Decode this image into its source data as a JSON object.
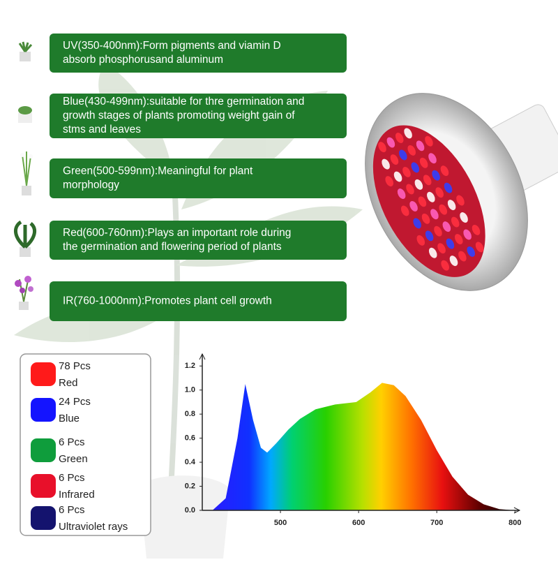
{
  "features": [
    {
      "lines": [
        "UV(350-400nm):Form pigments and viamin D",
        "absorb phosphorusand aluminum"
      ]
    },
    {
      "lines": [
        "Blue(430-499nm):suitable for thre germination and",
        "growth stages of plants promoting weight gain of",
        "stms and leaves"
      ]
    },
    {
      "lines": [
        "Green(500-599nm):Meaningful for plant",
        "morphology"
      ]
    },
    {
      "lines": [
        "Red(600-760nm):Plays an important role during",
        "the germination and flowering period of plants"
      ]
    },
    {
      "lines": [
        "IR(760-1000nm):Promotes plant cell growth"
      ]
    }
  ],
  "legend": [
    {
      "count": "78 Pcs",
      "name": "Red",
      "color": "#ff1a1a"
    },
    {
      "count": "24 Pcs",
      "name": "Blue",
      "color": "#1414ff"
    },
    {
      "count": "6 Pcs",
      "name": "Green",
      "color": "#0f9d3c"
    },
    {
      "count": "6 Pcs",
      "name": "Infrared",
      "color": "#e8102a"
    },
    {
      "count": "6 Pcs",
      "name": "Ultraviolet rays",
      "color": "#14136e"
    }
  ],
  "chart_data": {
    "type": "area",
    "x": [
      413,
      430,
      445,
      455,
      465,
      475,
      483,
      495,
      510,
      525,
      545,
      570,
      597,
      615,
      630,
      645,
      660,
      680,
      700,
      720,
      740,
      760,
      780,
      800
    ],
    "values": [
      0,
      0.1,
      0.6,
      1.05,
      0.75,
      0.52,
      0.48,
      0.56,
      0.67,
      0.76,
      0.84,
      0.88,
      0.9,
      0.98,
      1.06,
      1.04,
      0.95,
      0.75,
      0.5,
      0.28,
      0.13,
      0.05,
      0.01,
      0
    ],
    "xlim": [
      400,
      806
    ],
    "ylim": [
      0,
      1.3
    ],
    "xticks": [
      500,
      600,
      700,
      800
    ],
    "yticks": [
      {
        "value": 0,
        "label": "0.0"
      },
      0.2,
      0.4,
      0.6,
      0.8,
      {
        "value": 1,
        "label": "1.0"
      },
      1.2
    ]
  }
}
